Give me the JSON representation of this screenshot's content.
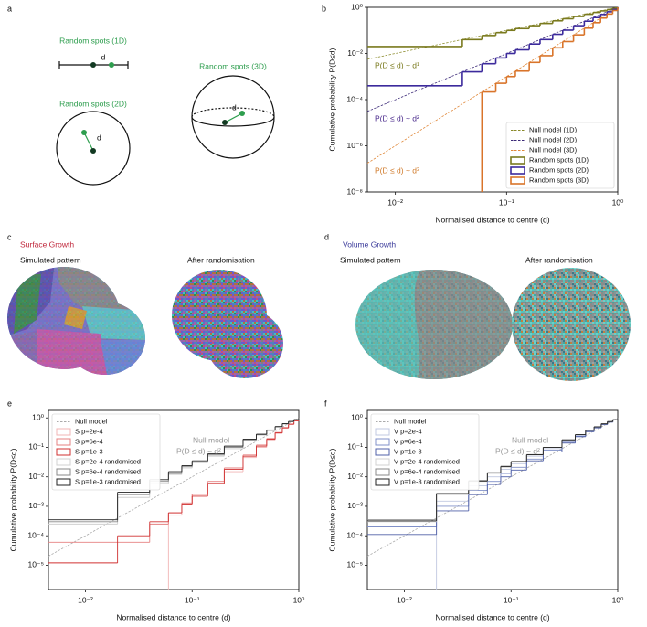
{
  "panel_labels": [
    "a",
    "b",
    "c",
    "d",
    "e",
    "f"
  ],
  "diagram": {
    "label_1d": "Random spots (1D)",
    "d_1d": "d",
    "label_2d": "Random spots (2D)",
    "d_2d": "d",
    "label_3d": "Random spots (3D)",
    "d_3d": "d"
  },
  "panel_c": {
    "title": "Surface Growth",
    "left": "Simulated pattern",
    "right": "After randomisation"
  },
  "panel_d": {
    "title": "Volume Growth",
    "left": "Simulated pattern",
    "right": "After randomisation"
  },
  "chart_data": [
    {
      "type": "line",
      "xscale": "log",
      "yscale": "log",
      "legend": "lower right",
      "xlabel": "Normalised distance to centre (d)",
      "ylabel": "Cumulative probability P(D≤d)",
      "xlim": [
        0.0056,
        1
      ],
      "ylim": [
        1e-08,
        1
      ],
      "xticks": [
        {
          "value": 0.01,
          "label": "10⁻²"
        },
        {
          "value": 0.1,
          "label": "10⁻¹"
        },
        {
          "value": 1,
          "label": "10⁰"
        }
      ],
      "yticks": [
        {
          "value": 1e-08,
          "label": "10⁻⁸"
        },
        {
          "value": 1e-06,
          "label": "10⁻⁶"
        },
        {
          "value": 0.0001,
          "label": "10⁻⁴"
        },
        {
          "value": 0.01,
          "label": "10⁻²"
        },
        {
          "value": 1,
          "label": "10⁰"
        }
      ],
      "annotations": [
        {
          "text": "P(D ≤ d) ~ d¹",
          "color": "#7a7a1e"
        },
        {
          "text": "P(D ≤ d) ~ d²",
          "color": "#4a2a8c"
        },
        {
          "text": "P(D ≤ d) ~ d³",
          "color": "#d07a2a"
        }
      ],
      "series": [
        {
          "name": "Null model (1D)",
          "color": "#8a8a2a",
          "style": "dashed",
          "x": [
            0.0056,
            1
          ],
          "values": [
            0.0056,
            1
          ]
        },
        {
          "name": "Null model (2D)",
          "color": "#3c2a78",
          "style": "dashed",
          "x": [
            0.0056,
            1
          ],
          "values": [
            3.1e-05,
            1
          ]
        },
        {
          "name": "Null model (3D)",
          "color": "#e0883a",
          "style": "dashed",
          "x": [
            0.0056,
            1
          ],
          "values": [
            1.76e-07,
            1
          ]
        },
        {
          "name": "Random spots (1D)",
          "color": "#7a7a1e",
          "style": "step",
          "x": [
            0.02,
            0.04,
            0.06,
            0.08,
            0.1,
            0.12,
            0.16,
            0.2,
            0.26,
            0.32,
            0.4,
            0.5,
            0.6,
            0.7,
            0.8,
            0.9,
            1
          ],
          "values": [
            0.02,
            0.04,
            0.06,
            0.08,
            0.1,
            0.12,
            0.16,
            0.2,
            0.26,
            0.32,
            0.4,
            0.5,
            0.6,
            0.7,
            0.8,
            0.9,
            1
          ]
        },
        {
          "name": "Random spots (2D)",
          "color": "#3c2a9c",
          "style": "step",
          "x": [
            0.02,
            0.04,
            0.06,
            0.08,
            0.1,
            0.12,
            0.16,
            0.2,
            0.26,
            0.32,
            0.4,
            0.5,
            0.6,
            0.7,
            0.8,
            0.9,
            1
          ],
          "values": [
            0.0004,
            0.0016,
            0.0036,
            0.0064,
            0.01,
            0.0144,
            0.0256,
            0.04,
            0.0676,
            0.1024,
            0.16,
            0.25,
            0.36,
            0.49,
            0.64,
            0.81,
            1
          ]
        },
        {
          "name": "Random spots (3D)",
          "color": "#d9742a",
          "style": "step",
          "x": [
            0.02,
            0.04,
            0.06,
            0.08,
            0.1,
            0.12,
            0.16,
            0.2,
            0.26,
            0.32,
            0.4,
            0.5,
            0.6,
            0.7,
            0.8,
            0.9,
            1
          ],
          "values": [
            null,
            null,
            0.000216,
            0.000512,
            0.001,
            0.001728,
            0.004096,
            0.008,
            0.017576,
            0.032768,
            0.064,
            0.125,
            0.216,
            0.343,
            0.512,
            0.729,
            1
          ]
        }
      ]
    },
    {
      "type": "line",
      "xscale": "log",
      "yscale": "log",
      "legend": "upper left",
      "xlabel": "Normalised distance to centre (d)",
      "ylabel": "Cumulative probability P(D≤d)",
      "xlim": [
        0.0045,
        1
      ],
      "ylim": [
        1.5e-06,
        1.8
      ],
      "xticks": [
        {
          "value": 0.01,
          "label": "10⁻²"
        },
        {
          "value": 0.1,
          "label": "10⁻¹"
        },
        {
          "value": 1,
          "label": "10⁰"
        }
      ],
      "yticks": [
        {
          "value": 1e-05,
          "label": "10⁻⁵"
        },
        {
          "value": 0.0001,
          "label": "10⁻⁴"
        },
        {
          "value": 0.001,
          "label": "10⁻³"
        },
        {
          "value": 0.01,
          "label": "10⁻²"
        },
        {
          "value": 0.1,
          "label": "10⁻¹"
        },
        {
          "value": 1,
          "label": "10⁰"
        }
      ],
      "annotations": [
        {
          "text": "Null model",
          "color": "#999999"
        },
        {
          "text": "P(D ≤ d) ~ d²",
          "color": "#999999"
        }
      ],
      "series": [
        {
          "name": "Null model",
          "color": "#aaaaaa",
          "style": "dashed",
          "x": [
            0.0045,
            1
          ],
          "values": [
            2.025e-05,
            1
          ]
        },
        {
          "name": "S p=2e-4",
          "color": "#f2b4b4",
          "style": "step",
          "x": [
            0.01,
            0.02,
            0.04,
            0.06,
            0.08,
            0.1,
            0.14,
            0.2,
            0.3,
            0.4,
            0.5,
            0.6,
            0.7,
            0.8,
            0.9,
            1
          ],
          "values": [
            null,
            null,
            null,
            0.0005,
            0.0012,
            0.0025,
            0.006,
            0.015,
            0.045,
            0.1,
            0.18,
            0.3,
            0.45,
            0.6,
            0.8,
            1
          ]
        },
        {
          "name": "S p=6e-4",
          "color": "#e58080",
          "style": "step",
          "x": [
            0.01,
            0.02,
            0.04,
            0.06,
            0.08,
            0.1,
            0.14,
            0.2,
            0.3,
            0.4,
            0.5,
            0.6,
            0.7,
            0.8,
            0.9,
            1
          ],
          "values": [
            6e-05,
            6e-05,
            0.00025,
            0.0006,
            0.0013,
            0.0026,
            0.007,
            0.02,
            0.055,
            0.12,
            0.2,
            0.32,
            0.47,
            0.62,
            0.8,
            1
          ]
        },
        {
          "name": "S p=1e-3",
          "color": "#d03030",
          "style": "step",
          "x": [
            0.01,
            0.02,
            0.04,
            0.06,
            0.08,
            0.1,
            0.14,
            0.2,
            0.3,
            0.4,
            0.5,
            0.6,
            0.7,
            0.8,
            0.9,
            1
          ],
          "values": [
            1.2e-05,
            0.0001,
            0.0003,
            0.0006,
            0.0012,
            0.0022,
            0.006,
            0.018,
            0.05,
            0.11,
            0.19,
            0.31,
            0.46,
            0.61,
            0.8,
            1
          ]
        },
        {
          "name": "S p=2e-4 randomised",
          "color": "#d0d0d0",
          "style": "step",
          "x": [
            0.01,
            0.02,
            0.04,
            0.06,
            0.08,
            0.1,
            0.14,
            0.2,
            0.3,
            0.4,
            0.5,
            0.6,
            0.7,
            0.8,
            0.9,
            1
          ],
          "values": [
            0.00025,
            0.002,
            0.006,
            0.012,
            0.02,
            0.03,
            0.05,
            0.09,
            0.17,
            0.26,
            0.37,
            0.49,
            0.62,
            0.74,
            0.87,
            1
          ]
        },
        {
          "name": "S p=6e-4 randomised",
          "color": "#888888",
          "style": "step",
          "x": [
            0.01,
            0.02,
            0.04,
            0.06,
            0.08,
            0.1,
            0.14,
            0.2,
            0.3,
            0.4,
            0.5,
            0.6,
            0.7,
            0.8,
            0.9,
            1
          ],
          "values": [
            0.0003,
            0.0025,
            0.007,
            0.013,
            0.022,
            0.032,
            0.055,
            0.1,
            0.18,
            0.27,
            0.38,
            0.5,
            0.63,
            0.75,
            0.87,
            1
          ]
        },
        {
          "name": "S p=1e-3 randomised",
          "color": "#222222",
          "style": "step",
          "x": [
            0.01,
            0.02,
            0.04,
            0.06,
            0.08,
            0.1,
            0.14,
            0.2,
            0.3,
            0.4,
            0.5,
            0.6,
            0.7,
            0.8,
            0.9,
            1
          ],
          "values": [
            0.00035,
            0.003,
            0.008,
            0.015,
            0.024,
            0.035,
            0.06,
            0.11,
            0.19,
            0.28,
            0.39,
            0.51,
            0.64,
            0.76,
            0.88,
            1
          ]
        }
      ]
    },
    {
      "type": "line",
      "xscale": "log",
      "yscale": "log",
      "legend": "upper left",
      "xlabel": "Normalised distance to centre (d)",
      "ylabel": "Cumulative probability P(D≤d)",
      "xlim": [
        0.0045,
        1
      ],
      "ylim": [
        1.5e-06,
        1.8
      ],
      "xticks": [
        {
          "value": 0.01,
          "label": "10⁻²"
        },
        {
          "value": 0.1,
          "label": "10⁻¹"
        },
        {
          "value": 1,
          "label": "10⁰"
        }
      ],
      "yticks": [
        {
          "value": 1e-05,
          "label": "10⁻⁵"
        },
        {
          "value": 0.0001,
          "label": "10⁻⁴"
        },
        {
          "value": 0.001,
          "label": "10⁻³"
        },
        {
          "value": 0.01,
          "label": "10⁻²"
        },
        {
          "value": 0.1,
          "label": "10⁻¹"
        },
        {
          "value": 1,
          "label": "10⁰"
        }
      ],
      "annotations": [
        {
          "text": "Null model",
          "color": "#999999"
        },
        {
          "text": "P(D ≤ d) ~ d²",
          "color": "#999999"
        }
      ],
      "series": [
        {
          "name": "Null model",
          "color": "#aaaaaa",
          "style": "dashed",
          "x": [
            0.0045,
            1
          ],
          "values": [
            2.025e-05,
            1
          ]
        },
        {
          "name": "V p=2e-4",
          "color": "#c0c8e0",
          "style": "step",
          "x": [
            0.01,
            0.02,
            0.04,
            0.06,
            0.08,
            0.1,
            0.14,
            0.2,
            0.3,
            0.4,
            0.5,
            0.6,
            0.7,
            0.8,
            0.9,
            1
          ],
          "values": [
            null,
            0.0015,
            0.005,
            0.01,
            0.018,
            0.028,
            0.05,
            0.09,
            0.17,
            0.26,
            0.37,
            0.49,
            0.62,
            0.74,
            0.87,
            1
          ]
        },
        {
          "name": "V p=6e-4",
          "color": "#8090c8",
          "style": "step",
          "x": [
            0.01,
            0.02,
            0.04,
            0.06,
            0.08,
            0.1,
            0.14,
            0.2,
            0.3,
            0.4,
            0.5,
            0.6,
            0.7,
            0.8,
            0.9,
            1
          ],
          "values": [
            0.0002,
            0.001,
            0.0035,
            0.007,
            0.013,
            0.021,
            0.04,
            0.08,
            0.15,
            0.24,
            0.35,
            0.47,
            0.6,
            0.73,
            0.86,
            1
          ]
        },
        {
          "name": "V p=1e-3",
          "color": "#5060a8",
          "style": "step",
          "x": [
            0.01,
            0.02,
            0.04,
            0.06,
            0.08,
            0.1,
            0.14,
            0.2,
            0.3,
            0.4,
            0.5,
            0.6,
            0.7,
            0.8,
            0.9,
            1
          ],
          "values": [
            0.00011,
            0.0007,
            0.0025,
            0.0055,
            0.01,
            0.017,
            0.035,
            0.07,
            0.14,
            0.23,
            0.34,
            0.46,
            0.59,
            0.72,
            0.86,
            1
          ]
        },
        {
          "name": "V p=2e-4 randomised",
          "color": "#d0d0d0",
          "style": "step",
          "x": [
            0.01,
            0.02,
            0.04,
            0.06,
            0.08,
            0.1,
            0.14,
            0.2,
            0.3,
            0.4,
            0.5,
            0.6,
            0.7,
            0.8,
            0.9,
            1
          ],
          "values": [
            0.0003,
            0.0025,
            0.007,
            0.013,
            0.022,
            0.032,
            0.055,
            0.1,
            0.18,
            0.27,
            0.38,
            0.5,
            0.63,
            0.75,
            0.87,
            1
          ]
        },
        {
          "name": "V p=6e-4 randomised",
          "color": "#888888",
          "style": "step",
          "x": [
            0.01,
            0.02,
            0.04,
            0.06,
            0.08,
            0.1,
            0.14,
            0.2,
            0.3,
            0.4,
            0.5,
            0.6,
            0.7,
            0.8,
            0.9,
            1
          ],
          "values": [
            0.00035,
            0.0028,
            0.0075,
            0.014,
            0.023,
            0.033,
            0.057,
            0.1,
            0.18,
            0.27,
            0.38,
            0.5,
            0.63,
            0.75,
            0.87,
            1
          ]
        },
        {
          "name": "V p=1e-3 randomised",
          "color": "#222222",
          "style": "step",
          "x": [
            0.01,
            0.02,
            0.04,
            0.06,
            0.08,
            0.1,
            0.14,
            0.2,
            0.3,
            0.4,
            0.5,
            0.6,
            0.7,
            0.8,
            0.9,
            1
          ],
          "values": [
            0.00032,
            0.0026,
            0.0072,
            0.0135,
            0.022,
            0.033,
            0.056,
            0.1,
            0.18,
            0.27,
            0.38,
            0.5,
            0.63,
            0.75,
            0.87,
            1
          ]
        }
      ]
    }
  ]
}
